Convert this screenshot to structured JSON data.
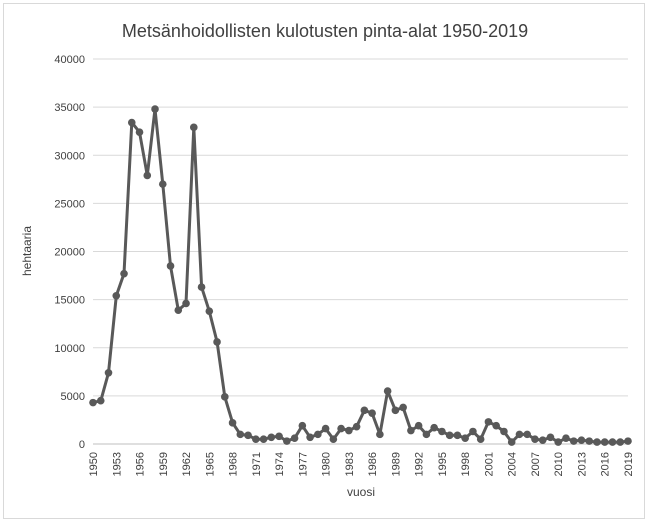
{
  "chart_data": {
    "type": "line",
    "title": "Metsänhoidollisten kulotusten pinta-alat 1950-2019",
    "xlabel": "vuosi",
    "ylabel": "hehtaaria",
    "ylim": [
      0,
      40000
    ],
    "y_ticks": [
      0,
      5000,
      10000,
      15000,
      20000,
      25000,
      30000,
      35000,
      40000
    ],
    "x_tick_labels": [
      "1950",
      "1953",
      "1956",
      "1959",
      "1962",
      "1965",
      "1968",
      "1971",
      "1974",
      "1977",
      "1980",
      "1983",
      "1986",
      "1989",
      "1992",
      "1995",
      "1998",
      "2001",
      "2004",
      "2007",
      "2010",
      "2013",
      "2016",
      "2019"
    ],
    "grid": true,
    "legend": "none",
    "color": "#595959",
    "x": [
      1950,
      1951,
      1952,
      1953,
      1954,
      1955,
      1956,
      1957,
      1958,
      1959,
      1960,
      1961,
      1962,
      1963,
      1964,
      1965,
      1966,
      1967,
      1968,
      1969,
      1970,
      1971,
      1972,
      1973,
      1974,
      1975,
      1976,
      1977,
      1978,
      1979,
      1980,
      1981,
      1982,
      1983,
      1984,
      1985,
      1986,
      1987,
      1988,
      1989,
      1990,
      1991,
      1992,
      1993,
      1994,
      1995,
      1996,
      1997,
      1998,
      1999,
      2000,
      2001,
      2002,
      2003,
      2004,
      2005,
      2006,
      2007,
      2008,
      2009,
      2010,
      2011,
      2012,
      2013,
      2014,
      2015,
      2016,
      2017,
      2018,
      2019
    ],
    "series": [
      {
        "values": [
          4300,
          4500,
          7400,
          15400,
          17700,
          33400,
          32400,
          27900,
          34800,
          27000,
          18500,
          13900,
          14600,
          32900,
          16300,
          13800,
          10600,
          4900,
          2200,
          1000,
          900,
          500,
          500,
          700,
          800,
          300,
          600,
          1900,
          700,
          1000,
          1600,
          500,
          1600,
          1400,
          1800,
          3500,
          3200,
          1000,
          5500,
          3500,
          3800,
          1400,
          1900,
          1000,
          1700,
          1300,
          900,
          900,
          600,
          1300,
          500,
          2300,
          1900,
          1300,
          200,
          1000,
          1000,
          500,
          400,
          700,
          200,
          600,
          300,
          400,
          300,
          200,
          200,
          200,
          200,
          300
        ]
      }
    ]
  }
}
